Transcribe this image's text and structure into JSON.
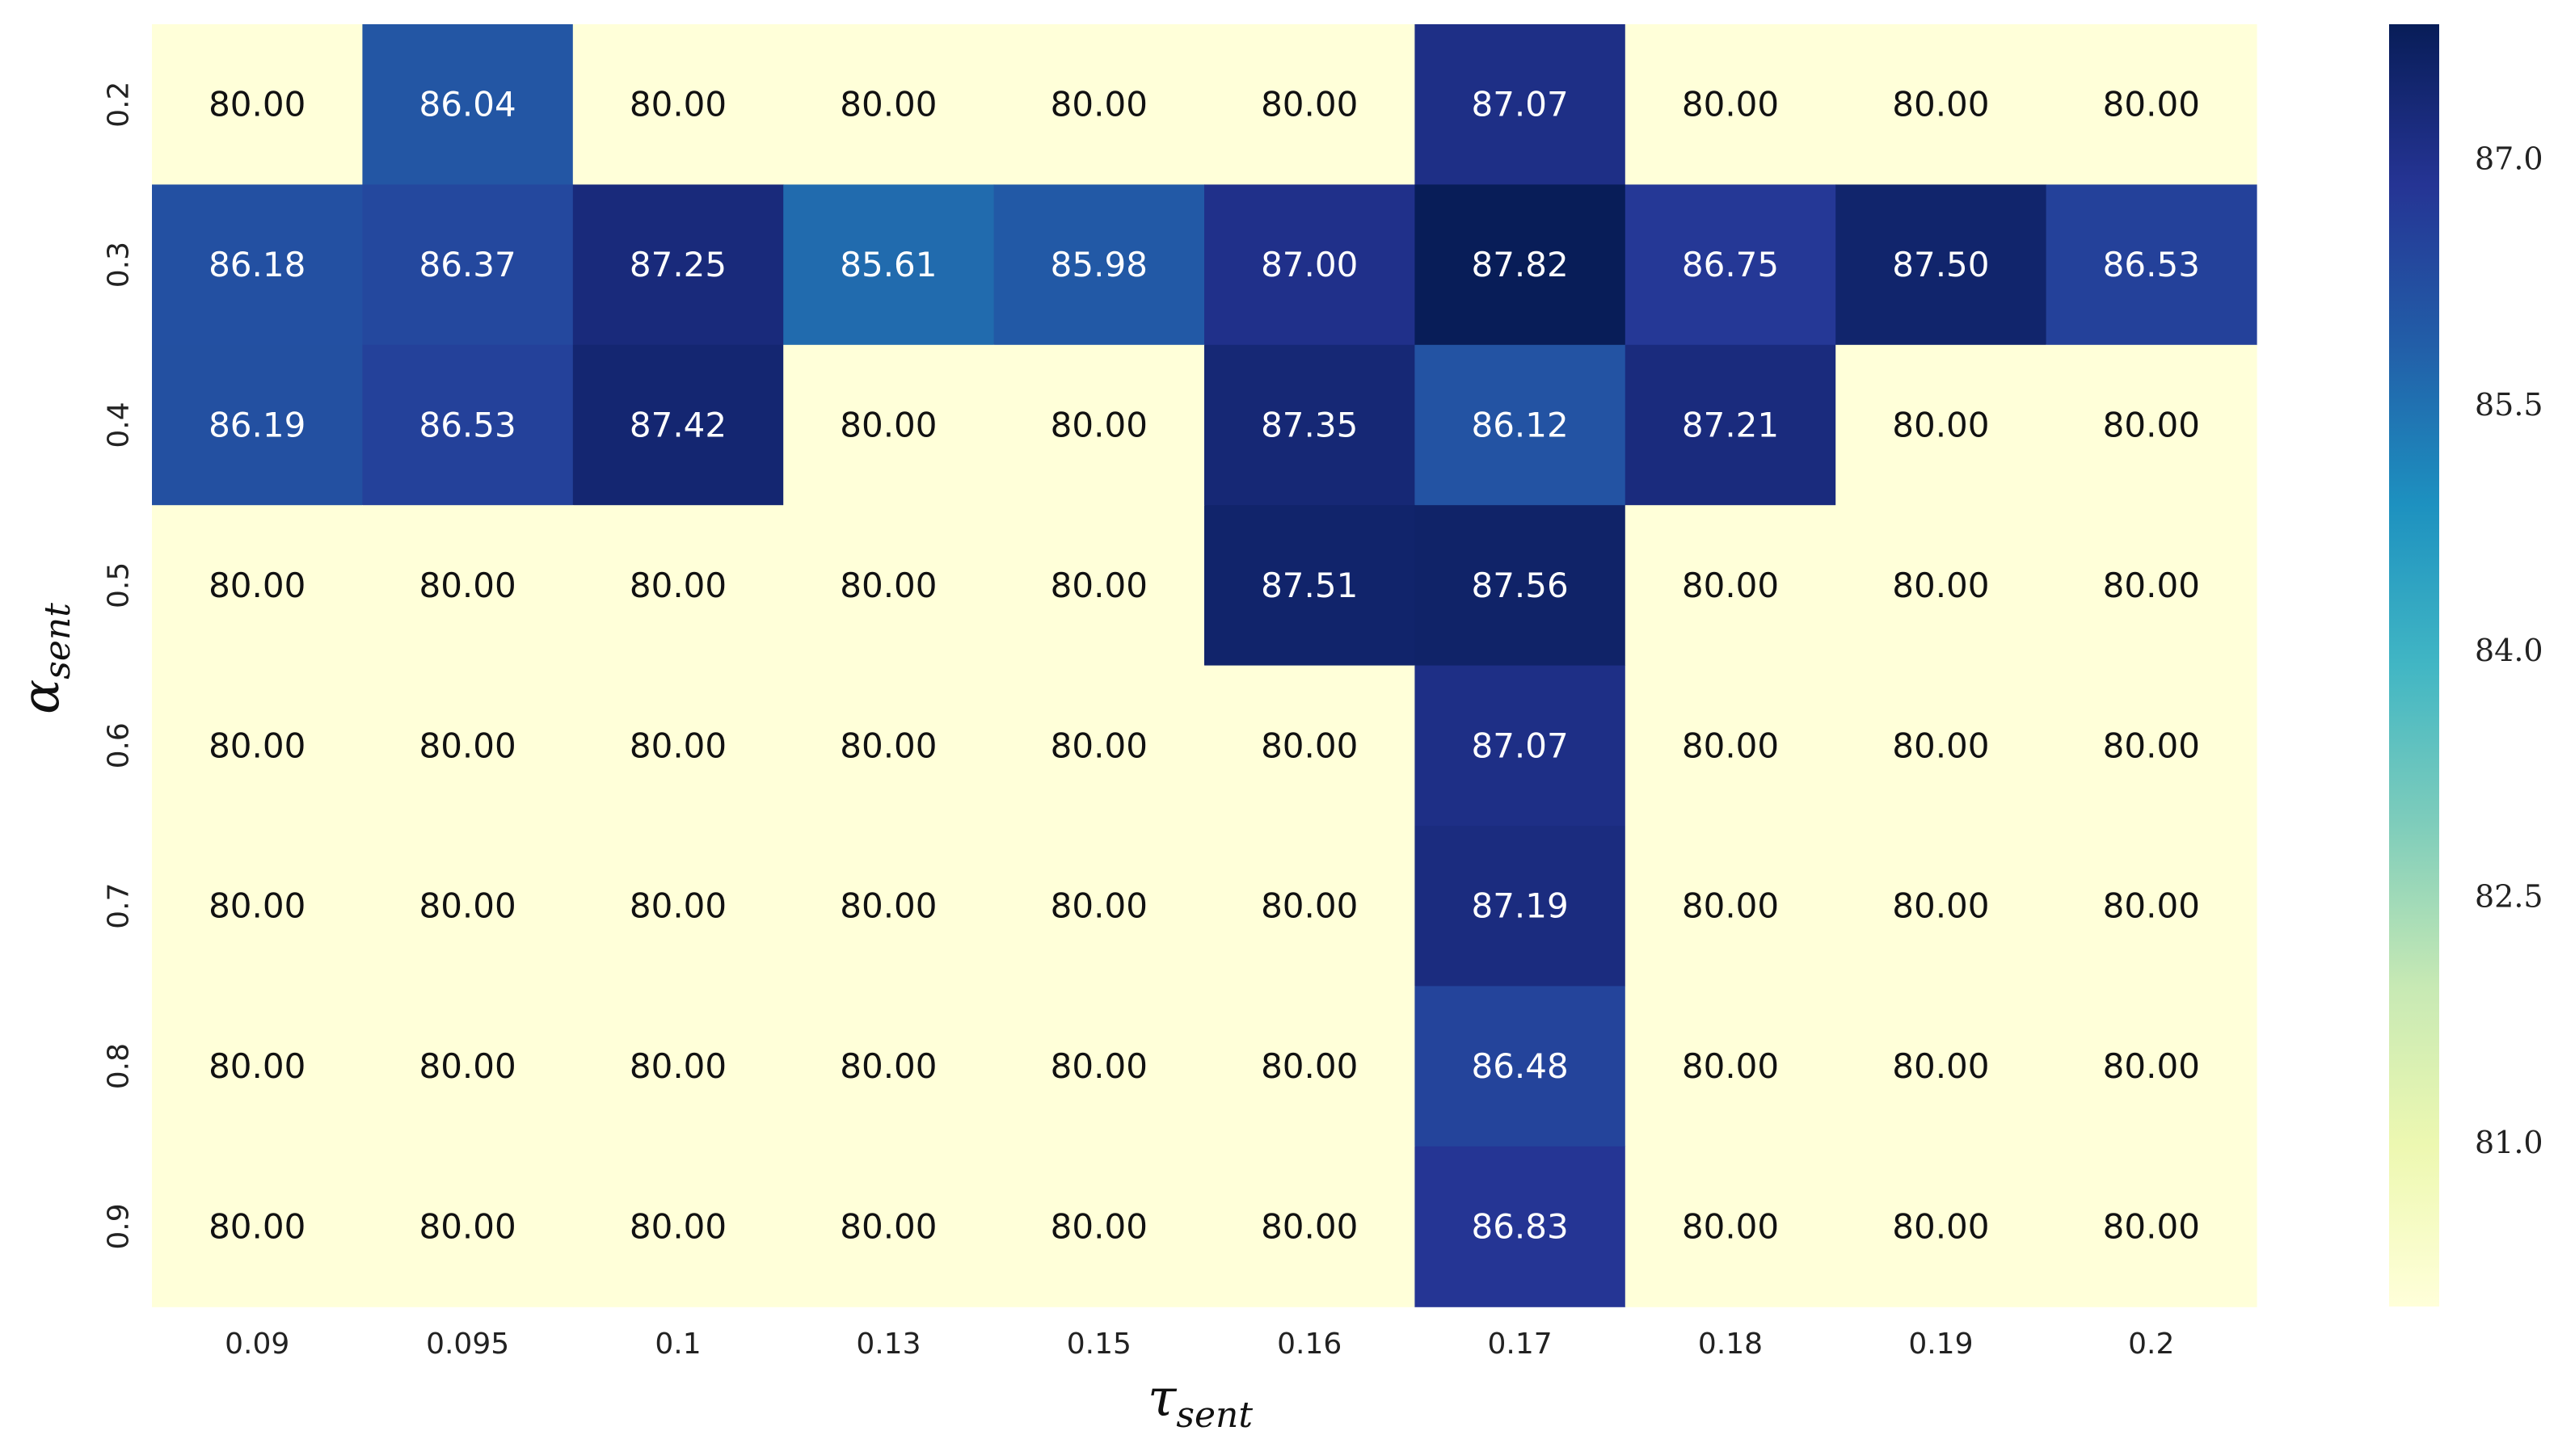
{
  "chart_data": {
    "type": "heatmap",
    "xlabel_main": "τ",
    "xlabel_sub": "sent",
    "ylabel_main": "α",
    "ylabel_sub": "sent",
    "x_categories": [
      "0.09",
      "0.095",
      "0.1",
      "0.13",
      "0.15",
      "0.16",
      "0.17",
      "0.18",
      "0.19",
      "0.2"
    ],
    "y_categories": [
      "0.2",
      "0.3",
      "0.4",
      "0.5",
      "0.6",
      "0.7",
      "0.8",
      "0.9"
    ],
    "values": [
      [
        80.0,
        86.04,
        80.0,
        80.0,
        80.0,
        80.0,
        87.07,
        80.0,
        80.0,
        80.0
      ],
      [
        86.18,
        86.37,
        87.25,
        85.61,
        85.98,
        87.0,
        87.82,
        86.75,
        87.5,
        86.53
      ],
      [
        86.19,
        86.53,
        87.42,
        80.0,
        80.0,
        87.35,
        86.12,
        87.21,
        80.0,
        80.0
      ],
      [
        80.0,
        80.0,
        80.0,
        80.0,
        80.0,
        87.51,
        87.56,
        80.0,
        80.0,
        80.0
      ],
      [
        80.0,
        80.0,
        80.0,
        80.0,
        80.0,
        80.0,
        87.07,
        80.0,
        80.0,
        80.0
      ],
      [
        80.0,
        80.0,
        80.0,
        80.0,
        80.0,
        80.0,
        87.19,
        80.0,
        80.0,
        80.0
      ],
      [
        80.0,
        80.0,
        80.0,
        80.0,
        80.0,
        80.0,
        86.48,
        80.0,
        80.0,
        80.0
      ],
      [
        80.0,
        80.0,
        80.0,
        80.0,
        80.0,
        80.0,
        86.83,
        80.0,
        80.0,
        80.0
      ]
    ],
    "value_format": "2 decimals",
    "colormap": "YlGnBu",
    "vmin": 80.0,
    "vmax": 87.82,
    "colorbar_ticks": [
      "81.0",
      "82.5",
      "84.0",
      "85.5",
      "87.0"
    ],
    "grid": false,
    "legend": "colorbar-right"
  }
}
